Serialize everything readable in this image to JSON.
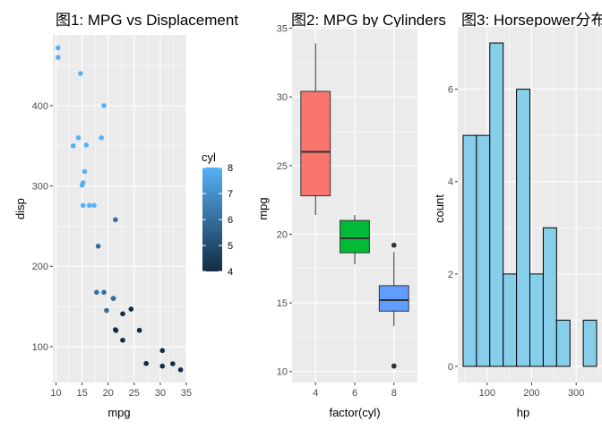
{
  "colors": {
    "panel_bg": "#EBEBEB",
    "grid_major": "#FFFFFF",
    "hist_fill": "#87CEEB",
    "cyl_fill": [
      "#F8766D",
      "#00BA38",
      "#619CFF"
    ],
    "cyl_low": "#132B43",
    "cyl_high": "#56B1F7"
  },
  "chart_data": [
    {
      "type": "scatter",
      "title": "图1: MPG vs Displacement",
      "xlabel": "mpg",
      "ylabel": "disp",
      "xlim": [
        9.4,
        35.0
      ],
      "ylim": [
        55.3,
        488.0
      ],
      "xticks": [
        10,
        15,
        20,
        25,
        30,
        35
      ],
      "yticks": [
        100,
        200,
        300,
        400
      ],
      "legend": {
        "title": "cyl",
        "type": "colorbar",
        "range": [
          4,
          8
        ],
        "ticks": [
          4,
          5,
          6,
          7,
          8
        ],
        "placement": "right"
      },
      "points": [
        {
          "x": 21.0,
          "y": 160,
          "cyl": 6
        },
        {
          "x": 21.0,
          "y": 160,
          "cyl": 6
        },
        {
          "x": 22.8,
          "y": 108,
          "cyl": 4
        },
        {
          "x": 21.4,
          "y": 258,
          "cyl": 6
        },
        {
          "x": 18.7,
          "y": 360,
          "cyl": 8
        },
        {
          "x": 18.1,
          "y": 225,
          "cyl": 6
        },
        {
          "x": 14.3,
          "y": 360,
          "cyl": 8
        },
        {
          "x": 24.4,
          "y": 146.7,
          "cyl": 4
        },
        {
          "x": 22.8,
          "y": 140.8,
          "cyl": 4
        },
        {
          "x": 19.2,
          "y": 167.6,
          "cyl": 6
        },
        {
          "x": 17.8,
          "y": 167.6,
          "cyl": 6
        },
        {
          "x": 16.4,
          "y": 275.8,
          "cyl": 8
        },
        {
          "x": 17.3,
          "y": 275.8,
          "cyl": 8
        },
        {
          "x": 15.2,
          "y": 275.8,
          "cyl": 8
        },
        {
          "x": 10.4,
          "y": 472,
          "cyl": 8
        },
        {
          "x": 10.4,
          "y": 460,
          "cyl": 8
        },
        {
          "x": 14.7,
          "y": 440,
          "cyl": 8
        },
        {
          "x": 32.4,
          "y": 78.7,
          "cyl": 4
        },
        {
          "x": 30.4,
          "y": 75.7,
          "cyl": 4
        },
        {
          "x": 33.9,
          "y": 71.1,
          "cyl": 4
        },
        {
          "x": 21.5,
          "y": 120.1,
          "cyl": 4
        },
        {
          "x": 15.5,
          "y": 318,
          "cyl": 8
        },
        {
          "x": 15.2,
          "y": 304,
          "cyl": 8
        },
        {
          "x": 13.3,
          "y": 350,
          "cyl": 8
        },
        {
          "x": 19.2,
          "y": 400,
          "cyl": 8
        },
        {
          "x": 27.3,
          "y": 79,
          "cyl": 4
        },
        {
          "x": 26.0,
          "y": 120.3,
          "cyl": 4
        },
        {
          "x": 30.4,
          "y": 95.1,
          "cyl": 4
        },
        {
          "x": 15.8,
          "y": 351,
          "cyl": 8
        },
        {
          "x": 19.7,
          "y": 145,
          "cyl": 6
        },
        {
          "x": 15.0,
          "y": 301,
          "cyl": 8
        },
        {
          "x": 21.4,
          "y": 121,
          "cyl": 4
        }
      ]
    },
    {
      "type": "box",
      "title": "图2: MPG by Cylinders",
      "xlabel": "factor(cyl)",
      "ylabel": "mpg",
      "ylim": [
        9.2,
        35.1
      ],
      "yticks": [
        10,
        15,
        20,
        25,
        30,
        35
      ],
      "categories": [
        "4",
        "6",
        "8"
      ],
      "boxes": [
        {
          "lower_whisker": 21.4,
          "q1": 22.8,
          "median": 26.0,
          "q3": 30.4,
          "upper_whisker": 33.9,
          "outliers": []
        },
        {
          "lower_whisker": 17.8,
          "q1": 18.65,
          "median": 19.7,
          "q3": 21.0,
          "upper_whisker": 21.4,
          "outliers": []
        },
        {
          "lower_whisker": 13.3,
          "q1": 14.4,
          "median": 15.2,
          "q3": 16.25,
          "upper_whisker": 18.7,
          "outliers": [
            10.4,
            10.4,
            19.2
          ]
        }
      ]
    },
    {
      "type": "histogram",
      "title": "图3: Horsepower分布",
      "xlabel": "hp",
      "ylabel": "count",
      "xlim": [
        34,
        358
      ],
      "ylim": [
        -0.35,
        7.35
      ],
      "xticks": [
        100,
        200,
        300
      ],
      "yticks": [
        0,
        2,
        4,
        6
      ],
      "bins": [
        {
          "x0": 46,
          "x1": 76,
          "count": 5
        },
        {
          "x0": 76,
          "x1": 106,
          "count": 5
        },
        {
          "x0": 106,
          "x1": 136,
          "count": 7
        },
        {
          "x0": 136,
          "x1": 166,
          "count": 2
        },
        {
          "x0": 166,
          "x1": 196,
          "count": 6
        },
        {
          "x0": 196,
          "x1": 226,
          "count": 2
        },
        {
          "x0": 226,
          "x1": 256,
          "count": 3
        },
        {
          "x0": 256,
          "x1": 286,
          "count": 1
        },
        {
          "x0": 286,
          "x1": 316,
          "count": 0
        },
        {
          "x0": 316,
          "x1": 346,
          "count": 1
        }
      ]
    }
  ]
}
